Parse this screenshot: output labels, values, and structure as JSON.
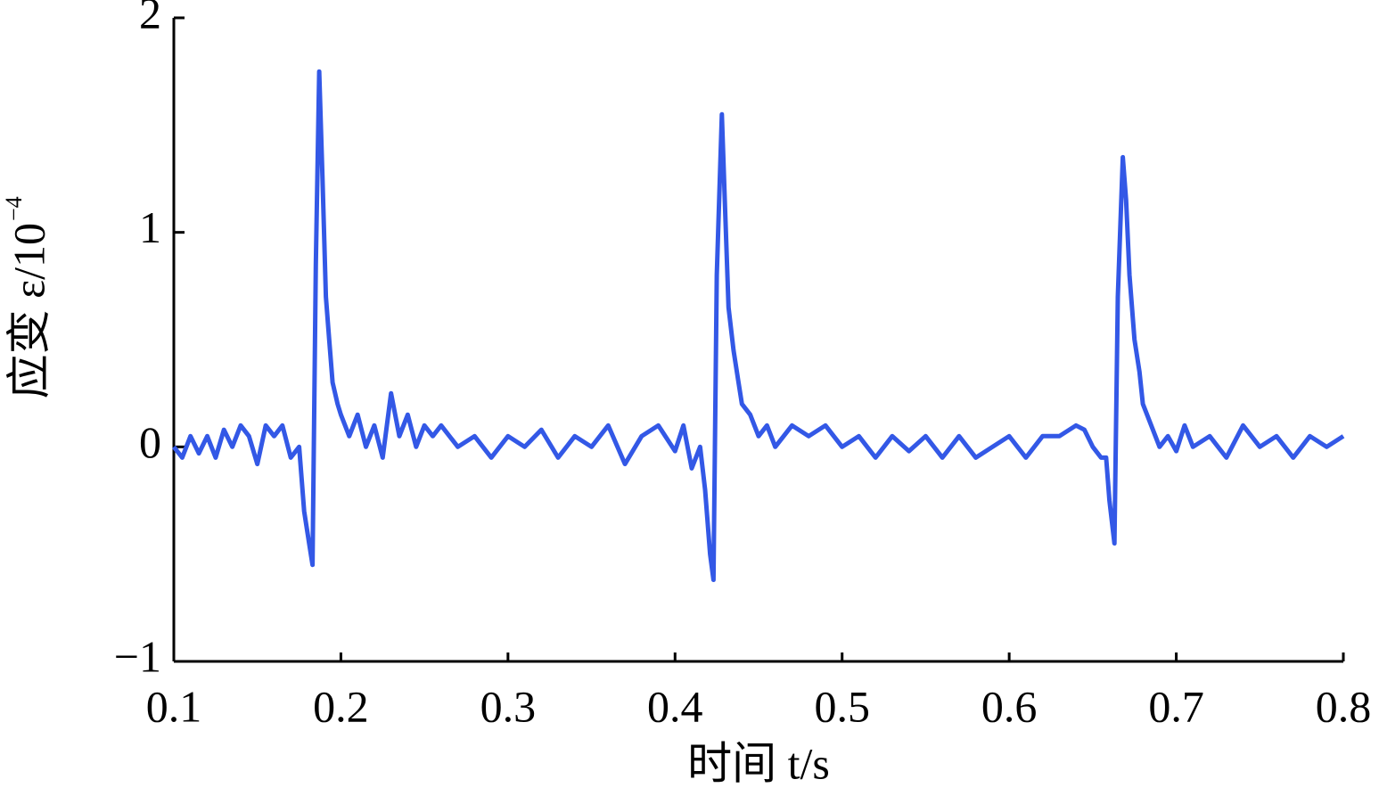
{
  "chart_data": {
    "type": "line",
    "xlabel": "时间 t/s",
    "ylabel": "应变 ε/10",
    "ylabel_exponent": "−4",
    "xlim": [
      0.1,
      0.8
    ],
    "ylim": [
      -1,
      2
    ],
    "xticks": [
      0.1,
      0.2,
      0.3,
      0.4,
      0.5,
      0.6,
      0.7,
      0.8
    ],
    "yticks": [
      {
        "value": -1,
        "label": "−1"
      },
      0,
      1,
      2
    ],
    "series": [
      {
        "color": "#3358e6",
        "x": [
          0.1,
          0.105,
          0.11,
          0.115,
          0.12,
          0.125,
          0.13,
          0.135,
          0.14,
          0.145,
          0.15,
          0.155,
          0.16,
          0.165,
          0.17,
          0.175,
          0.178,
          0.181,
          0.183,
          0.185,
          0.187,
          0.189,
          0.191,
          0.193,
          0.195,
          0.198,
          0.2,
          0.205,
          0.21,
          0.215,
          0.22,
          0.225,
          0.23,
          0.235,
          0.24,
          0.245,
          0.25,
          0.255,
          0.26,
          0.27,
          0.28,
          0.29,
          0.3,
          0.31,
          0.32,
          0.33,
          0.34,
          0.35,
          0.36,
          0.37,
          0.38,
          0.39,
          0.4,
          0.405,
          0.41,
          0.415,
          0.418,
          0.421,
          0.423,
          0.425,
          0.428,
          0.43,
          0.432,
          0.435,
          0.438,
          0.44,
          0.445,
          0.45,
          0.455,
          0.46,
          0.47,
          0.48,
          0.49,
          0.5,
          0.51,
          0.52,
          0.53,
          0.54,
          0.55,
          0.56,
          0.57,
          0.58,
          0.59,
          0.6,
          0.61,
          0.62,
          0.63,
          0.64,
          0.645,
          0.65,
          0.655,
          0.658,
          0.66,
          0.663,
          0.665,
          0.668,
          0.67,
          0.672,
          0.675,
          0.678,
          0.68,
          0.685,
          0.69,
          0.695,
          0.7,
          0.705,
          0.71,
          0.72,
          0.73,
          0.74,
          0.75,
          0.76,
          0.77,
          0.78,
          0.79,
          0.8
        ],
        "values": [
          0.0,
          -0.05,
          0.05,
          -0.03,
          0.05,
          -0.05,
          0.08,
          0.0,
          0.1,
          0.05,
          -0.08,
          0.1,
          0.05,
          0.1,
          -0.05,
          0.0,
          -0.3,
          -0.45,
          -0.55,
          0.85,
          1.75,
          1.25,
          0.7,
          0.5,
          0.3,
          0.2,
          0.15,
          0.05,
          0.15,
          0.0,
          0.1,
          -0.05,
          0.25,
          0.05,
          0.15,
          0.0,
          0.1,
          0.05,
          0.1,
          0.0,
          0.05,
          -0.05,
          0.05,
          0.0,
          0.08,
          -0.05,
          0.05,
          0.0,
          0.1,
          -0.08,
          0.05,
          0.1,
          -0.02,
          0.1,
          -0.1,
          0.0,
          -0.2,
          -0.5,
          -0.62,
          0.8,
          1.55,
          1.1,
          0.65,
          0.45,
          0.3,
          0.2,
          0.15,
          0.05,
          0.1,
          0.0,
          0.1,
          0.05,
          0.1,
          0.0,
          0.05,
          -0.05,
          0.05,
          -0.02,
          0.05,
          -0.05,
          0.05,
          -0.05,
          0.0,
          0.05,
          -0.05,
          0.05,
          0.05,
          0.1,
          0.08,
          0.0,
          -0.05,
          -0.05,
          -0.25,
          -0.45,
          0.7,
          1.35,
          1.15,
          0.8,
          0.5,
          0.35,
          0.2,
          0.1,
          0.0,
          0.05,
          -0.02,
          0.1,
          0.0,
          0.05,
          -0.05,
          0.1,
          0.0,
          0.05,
          -0.05,
          0.05,
          0.0,
          0.05
        ]
      }
    ]
  }
}
